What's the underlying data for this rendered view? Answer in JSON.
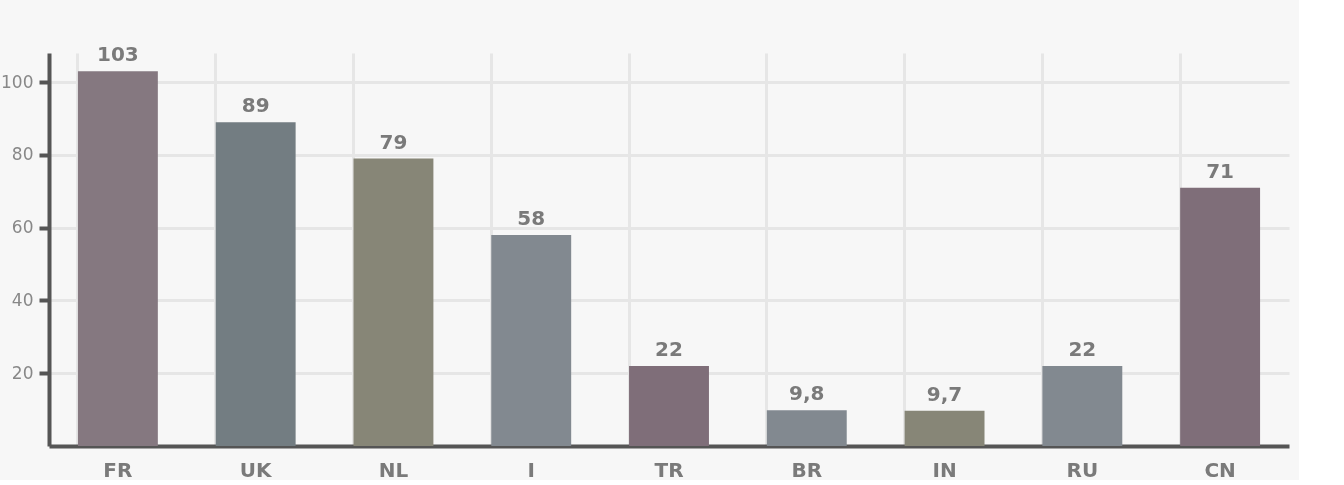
{
  "chart_data": {
    "type": "bar",
    "categories": [
      "FR",
      "UK",
      "NL",
      "I",
      "TR",
      "BR",
      "IN",
      "RU",
      "CN"
    ],
    "values": [
      103,
      89,
      79,
      58,
      22,
      9.8,
      9.7,
      22,
      71
    ],
    "value_labels": [
      "103",
      "89",
      "79",
      "58",
      "22",
      "9,8",
      "9,7",
      "22",
      "71"
    ],
    "colors": [
      "#857880",
      "#737d82",
      "#878677",
      "#828990",
      "#7f6e79",
      "#828990",
      "#878677",
      "#828990",
      "#7f6e79"
    ],
    "ylim": [
      0,
      108
    ],
    "yticks": [
      20,
      40,
      60,
      80,
      100
    ],
    "grid": true
  }
}
